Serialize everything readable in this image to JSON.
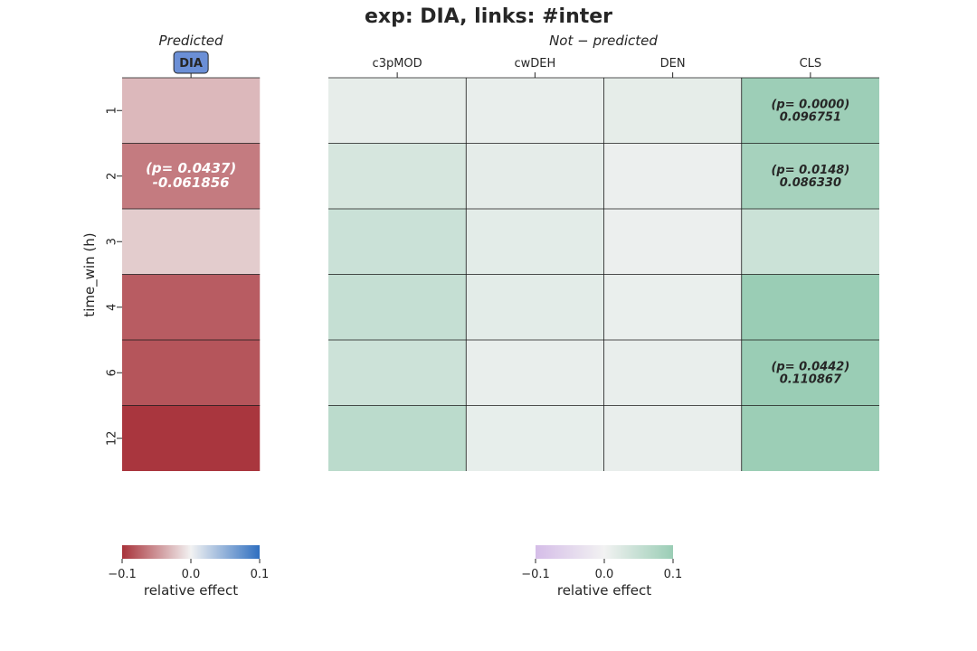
{
  "figure": {
    "title": "exp: DIA, links: #inter"
  },
  "chart_data": [
    {
      "type": "heatmap",
      "subtitle": "Predicted",
      "ylabel": "time_win (h)",
      "columns": [
        "DIA"
      ],
      "rows": [
        "1",
        "2",
        "3",
        "4",
        "6",
        "12"
      ],
      "values": [
        [
          -0.03
        ],
        [
          -0.061856
        ],
        [
          -0.02
        ],
        [
          -0.078
        ],
        [
          -0.082
        ],
        [
          -0.098
        ]
      ],
      "annotations": [
        {
          "row": 1,
          "col": 0,
          "line1": "(p= 0.0437)",
          "line2": "-0.061856"
        }
      ],
      "colorbar": {
        "min": -0.1,
        "max": 0.1,
        "ticks": [
          "−0.1",
          "0.0",
          "0.1"
        ],
        "label": "relative effect",
        "low_color": "#a8323a",
        "mid_color": "#f2f2f2",
        "high_color": "#2f6fc0"
      }
    },
    {
      "type": "heatmap",
      "subtitle": "Not − predicted",
      "columns": [
        "c3pMOD",
        "cwDEH",
        "DEN",
        "CLS"
      ],
      "rows": [
        "1",
        "2",
        "3",
        "4",
        "6",
        "12"
      ],
      "values": [
        [
          0.013,
          0.01,
          0.014,
          0.096751
        ],
        [
          0.032,
          0.015,
          0.007,
          0.08633
        ],
        [
          0.045,
          0.017,
          0.007,
          0.044
        ],
        [
          0.051,
          0.017,
          0.009,
          0.11
        ],
        [
          0.043,
          0.01,
          0.01,
          0.110867
        ],
        [
          0.062,
          0.012,
          0.01,
          0.098
        ]
      ],
      "annotations": [
        {
          "row": 0,
          "col": 3,
          "line1": "(p= 0.0000)",
          "line2": "0.096751"
        },
        {
          "row": 1,
          "col": 3,
          "line1": "(p= 0.0148)",
          "line2": "0.086330"
        },
        {
          "row": 4,
          "col": 3,
          "line1": "(p= 0.0442)",
          "line2": "0.110867"
        }
      ],
      "colorbar": {
        "min": -0.1,
        "max": 0.1,
        "ticks": [
          "−0.1",
          "0.0",
          "0.1"
        ],
        "label": "relative effect",
        "low_color": "#d5bde8",
        "mid_color": "#f2f2f2",
        "high_color": "#9acdb5"
      }
    }
  ]
}
